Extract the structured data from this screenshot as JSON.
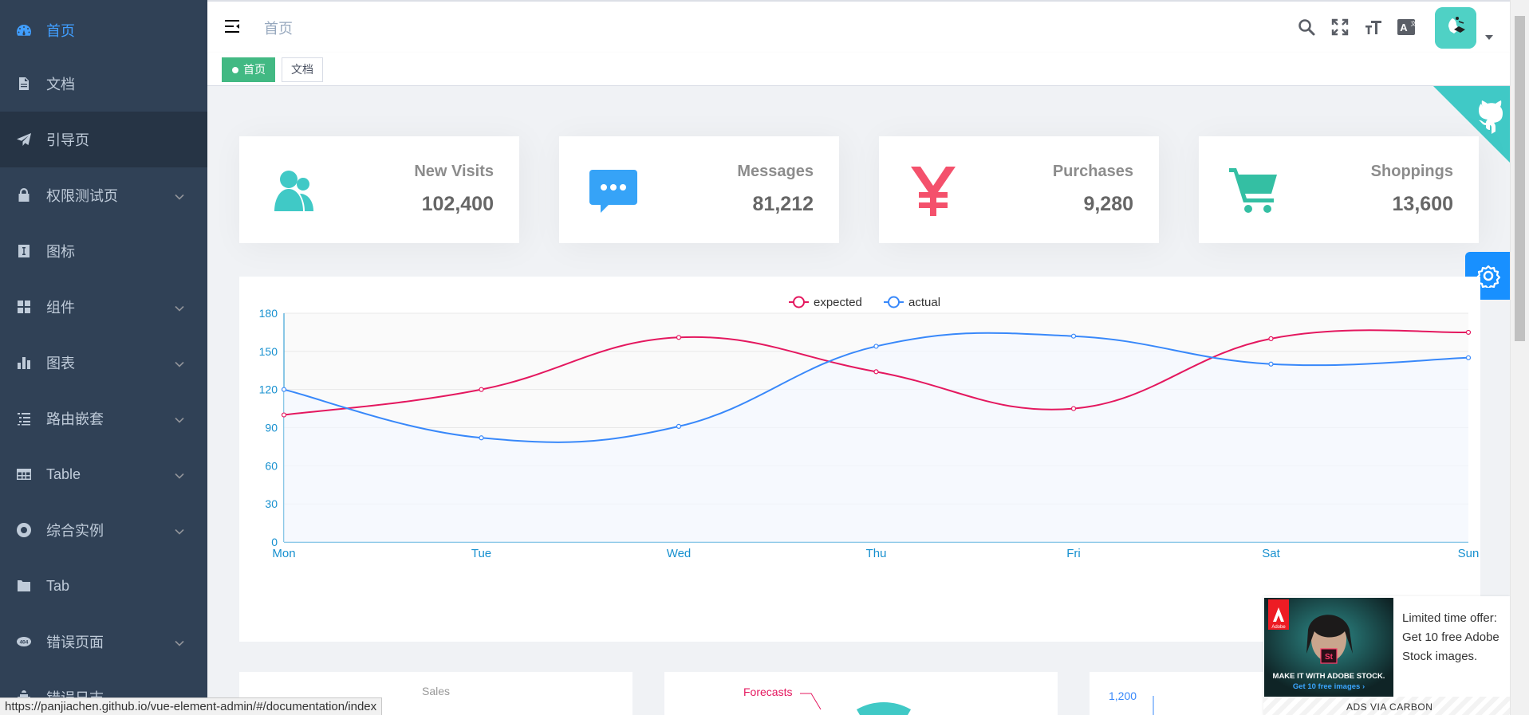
{
  "sidebar": {
    "items": [
      {
        "label": "首页",
        "icon": "dashboard-icon"
      },
      {
        "label": "文档",
        "icon": "document-icon"
      },
      {
        "label": "引导页",
        "icon": "guide-icon"
      },
      {
        "label": "权限测试页",
        "icon": "lock-icon"
      },
      {
        "label": "图标",
        "icon": "icon-icon"
      },
      {
        "label": "组件",
        "icon": "component-icon"
      },
      {
        "label": "图表",
        "icon": "chart-icon"
      },
      {
        "label": "路由嵌套",
        "icon": "nested-icon"
      },
      {
        "label": "Table",
        "icon": "table-icon"
      },
      {
        "label": "综合实例",
        "icon": "example-icon"
      },
      {
        "label": "Tab",
        "icon": "tab-icon"
      },
      {
        "label": "错误页面",
        "icon": "404-icon"
      },
      {
        "label": "错误日志",
        "icon": "bug-icon"
      }
    ],
    "active_color": "#409eff",
    "background": "#304156"
  },
  "navbar": {
    "breadcrumb": "首页"
  },
  "tags": [
    {
      "label": "首页",
      "active": true
    },
    {
      "label": "文档",
      "active": false
    }
  ],
  "panels": [
    {
      "label": "New Visits",
      "value": "102,400",
      "icon": "peoples-icon",
      "color": "#40c9c6"
    },
    {
      "label": "Messages",
      "value": "81,212",
      "icon": "message-icon",
      "color": "#36a3f7"
    },
    {
      "label": "Purchases",
      "value": "9,280",
      "icon": "money-icon",
      "color": "#f4516c"
    },
    {
      "label": "Shoppings",
      "value": "13,600",
      "icon": "shopping-icon",
      "color": "#34bfa3"
    }
  ],
  "chart_data": {
    "type": "line",
    "categories": [
      "Mon",
      "Tue",
      "Wed",
      "Thu",
      "Fri",
      "Sat",
      "Sun"
    ],
    "series": [
      {
        "name": "expected",
        "values": [
          100,
          120,
          161,
          134,
          105,
          160,
          165
        ],
        "color": "#e4185f"
      },
      {
        "name": "actual",
        "values": [
          120,
          82,
          91,
          154,
          162,
          140,
          145
        ],
        "color": "#3888fa"
      }
    ],
    "yticks": [
      0,
      30,
      60,
      90,
      120,
      150,
      180
    ],
    "ylim": [
      0,
      180
    ],
    "legend": "top-center",
    "grid": true,
    "smooth": true
  },
  "bottom_cards": {
    "sales_label": "Sales",
    "forecasts_label": "Forecasts",
    "bar_tick": "1,200"
  },
  "ad": {
    "text": "Limited time offer: Get 10 free Adobe Stock images.",
    "footer": "ADS VIA CARBON",
    "image_caption": "MAKE IT WITH ADOBE STOCK.",
    "image_link": "Get 10 free images ›",
    "brand": "Adobe",
    "badge": "St"
  },
  "status_url": "https://panjiachen.github.io/vue-element-admin/#/documentation/index"
}
